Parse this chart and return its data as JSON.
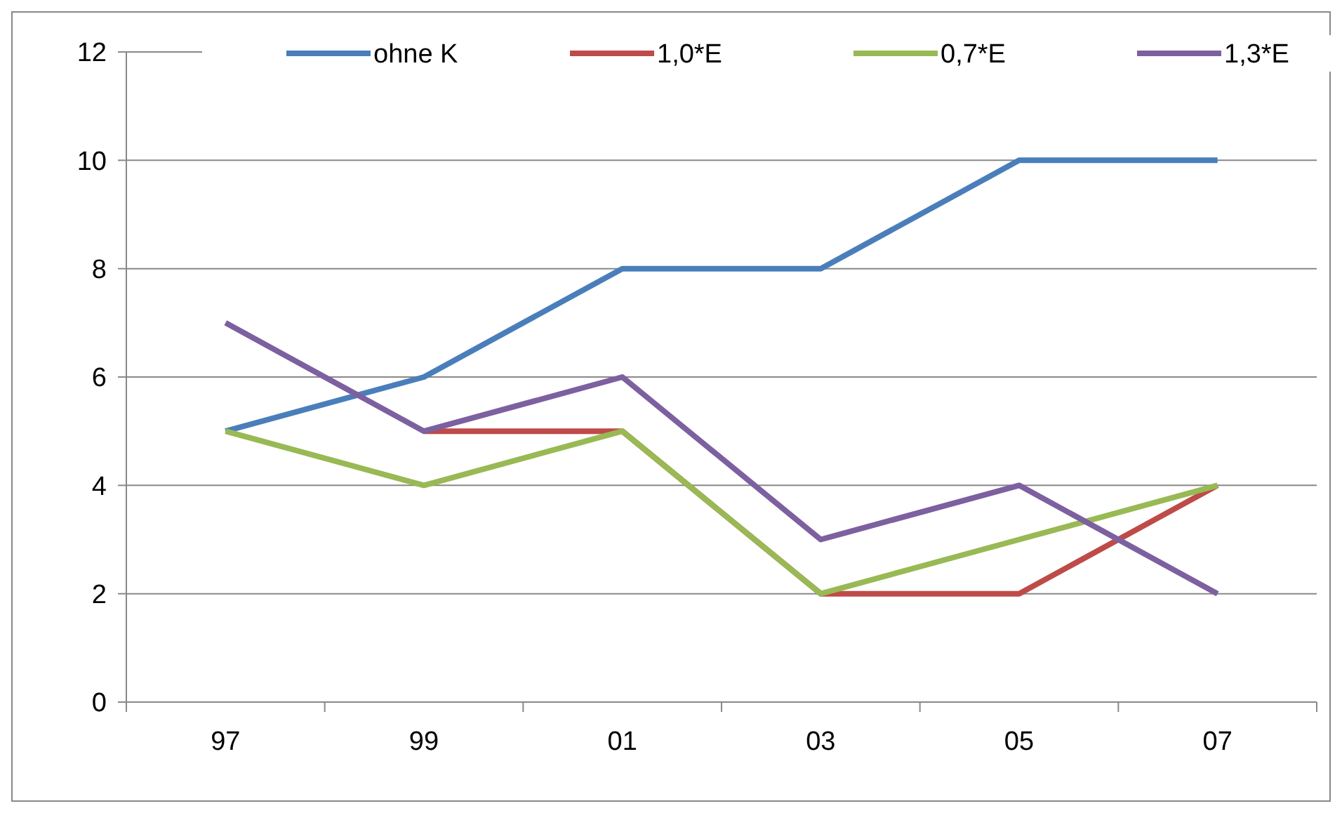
{
  "chart_data": {
    "type": "line",
    "categories": [
      "97",
      "99",
      "01",
      "03",
      "05",
      "07"
    ],
    "series": [
      {
        "name": "ohne K",
        "color": "#4a7ebb",
        "values": [
          5,
          6,
          8,
          8,
          10,
          10
        ]
      },
      {
        "name": "1,0*E",
        "color": "#be4b48",
        "values": [
          null,
          5,
          5,
          2,
          2,
          4
        ]
      },
      {
        "name": "0,7*E",
        "color": "#98b954",
        "values": [
          5,
          4,
          5,
          2,
          3,
          4
        ]
      },
      {
        "name": "1,3*E",
        "color": "#7d60a0",
        "values": [
          7,
          5,
          6,
          3,
          4,
          2
        ]
      }
    ],
    "ylim": [
      0,
      12
    ],
    "yticks": [
      0,
      2,
      4,
      6,
      8,
      10,
      12
    ],
    "grid": "y",
    "legend": "top",
    "marker": "none",
    "line_style": "solid"
  }
}
